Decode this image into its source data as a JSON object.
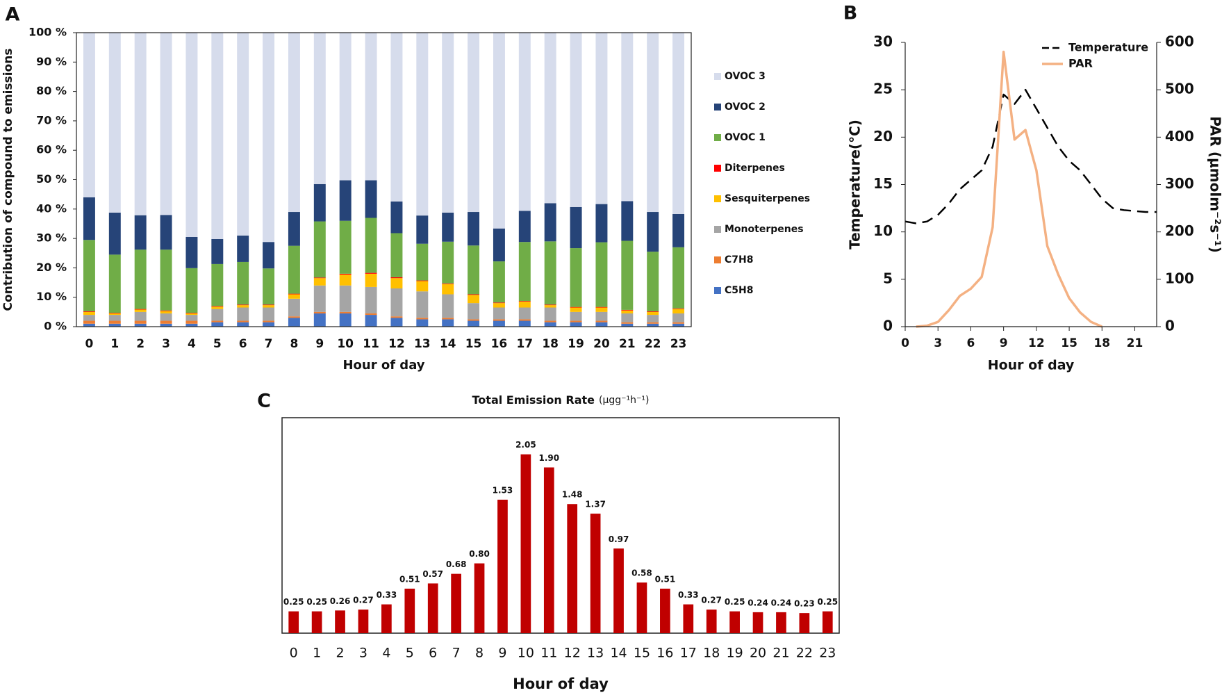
{
  "chart_data": [
    {
      "type": "stacked_bar",
      "panel_label": "A",
      "categories": [
        "0",
        "1",
        "2",
        "3",
        "4",
        "5",
        "6",
        "7",
        "8",
        "9",
        "10",
        "11",
        "12",
        "13",
        "14",
        "15",
        "16",
        "17",
        "18",
        "19",
        "20",
        "21",
        "22",
        "23"
      ],
      "xlabel": "Hour of day",
      "ylabel": "Contribution of compound to emissions",
      "ylim": [
        0,
        100
      ],
      "yticks": [
        {
          "value": 0,
          "label": "0 %"
        },
        {
          "value": 10,
          "label": "10 %"
        },
        {
          "value": 20,
          "label": "20 %"
        },
        {
          "value": 30,
          "label": "30 %"
        },
        {
          "value": 40,
          "label": "40 %"
        },
        {
          "value": 50,
          "label": "50 %"
        },
        {
          "value": 60,
          "label": "60 %"
        },
        {
          "value": 70,
          "label": "70 %"
        },
        {
          "value": 80,
          "label": "80 %"
        },
        {
          "value": 90,
          "label": "90 %"
        },
        {
          "value": 100,
          "label": "100 %"
        }
      ],
      "series": [
        {
          "name": "C5H8",
          "color": "#4472c4",
          "values": [
            1,
            1,
            1,
            1,
            1,
            1.5,
            1.5,
            1.5,
            3,
            4.5,
            4.5,
            4,
            3,
            2.5,
            2.5,
            2,
            2,
            2,
            1.5,
            1.5,
            1.5,
            1,
            1,
            1
          ]
        },
        {
          "name": "C7H8",
          "color": "#ed7d31",
          "values": [
            1,
            1,
            1,
            1,
            1,
            0.5,
            0.5,
            0.5,
            0.5,
            0.5,
            0.5,
            0.5,
            0.5,
            0.5,
            0.5,
            0.5,
            0.5,
            0.5,
            0.5,
            0.5,
            0.5,
            0.5,
            0.5,
            0.5
          ]
        },
        {
          "name": "Monoterpenes",
          "color": "#a5a5a5",
          "values": [
            2,
            2,
            3,
            2.5,
            2,
            4,
            4.5,
            4.5,
            6,
            9,
            9,
            9,
            9.5,
            9,
            8,
            5.5,
            4,
            4,
            4.5,
            3,
            3,
            3,
            2.5,
            3
          ]
        },
        {
          "name": "Sesquiterpenes",
          "color": "#ffc000",
          "values": [
            1,
            0.5,
            0.8,
            0.8,
            0.5,
            0.8,
            0.8,
            0.8,
            1.5,
            2.5,
            3.7,
            4.5,
            3.5,
            3.5,
            3.5,
            2.8,
            1.5,
            2,
            0.8,
            1.5,
            1.5,
            1,
            1,
            1.5
          ]
        },
        {
          "name": "Diterpenes",
          "color": "#ff0000",
          "values": [
            0.2,
            0.2,
            0.2,
            0.2,
            0.2,
            0.2,
            0.2,
            0.2,
            0.2,
            0.2,
            0.3,
            0.3,
            0.3,
            0.2,
            0.2,
            0.2,
            0.2,
            0.2,
            0.2,
            0.2,
            0.2,
            0.2,
            0.2,
            0.2
          ]
        },
        {
          "name": "OVOC 1",
          "color": "#70ad47",
          "values": [
            24.3,
            19.8,
            20.2,
            20.7,
            15.2,
            14.3,
            14.5,
            12.3,
            16.3,
            19.1,
            18,
            18.7,
            15,
            12.5,
            14.2,
            16.6,
            14,
            20.1,
            21.5,
            20,
            22,
            23.5,
            20.3,
            20.8
          ]
        },
        {
          "name": "OVOC 2",
          "color": "#264478",
          "values": [
            14.5,
            14.3,
            11.7,
            11.8,
            10.6,
            8.5,
            9,
            9,
            11.5,
            12.7,
            13.8,
            12.8,
            10.8,
            9.6,
            9.9,
            11.4,
            11.2,
            10.6,
            13,
            14,
            13,
            13.5,
            13.5,
            11.3
          ]
        },
        {
          "name": "OVOC 3",
          "color": "#d6dcec",
          "values": [
            56,
            61.2,
            62.1,
            62,
            69.5,
            70.2,
            69,
            71.2,
            61,
            51.5,
            50.2,
            50.2,
            57.4,
            62.2,
            61.2,
            61,
            66.6,
            60.6,
            58,
            59.3,
            58.3,
            57.3,
            61,
            61.7
          ]
        }
      ]
    },
    {
      "type": "line",
      "panel_label": "B",
      "x": [
        0,
        1,
        2,
        3,
        4,
        5,
        6,
        7,
        8,
        9,
        10,
        11,
        12,
        13,
        14,
        15,
        16,
        17,
        18,
        19,
        20,
        21,
        22,
        23
      ],
      "xlim": [
        0,
        23
      ],
      "xticks": [
        0,
        3,
        6,
        9,
        12,
        15,
        18,
        21
      ],
      "xlabel": "Hour of day",
      "ylabel": "Temperature(°C)",
      "y2label": "PAR (μmolm⁻²s⁻¹)",
      "ylim": [
        0,
        30
      ],
      "yticks": [
        0,
        5,
        10,
        15,
        20,
        25,
        30
      ],
      "y2lim": [
        0,
        600
      ],
      "y2ticks": [
        0,
        100,
        200,
        300,
        400,
        500,
        600
      ],
      "legend": "upper right",
      "series": [
        {
          "name": "Temperature",
          "color": "#000000",
          "dashed": true,
          "values": [
            11.1,
            10.9,
            11.1,
            11.8,
            13,
            14.5,
            15.5,
            16.5,
            19,
            24.5,
            23.5,
            25,
            23,
            21,
            19,
            17.5,
            16.5,
            15,
            13.5,
            12.5,
            12.3,
            12.2,
            12.1,
            12.1
          ]
        },
        {
          "name": "PAR",
          "color": "#f4b183",
          "axis": "y2",
          "values": [
            null,
            0,
            2,
            10,
            35,
            65,
            80,
            105,
            210,
            580,
            395,
            415,
            330,
            170,
            110,
            60,
            30,
            10,
            0,
            null,
            null,
            null,
            null,
            null
          ]
        }
      ]
    },
    {
      "type": "bar",
      "panel_label": "C",
      "title": "Total Emission Rate",
      "title_unit": "(μgg⁻¹h⁻¹)",
      "categories": [
        "0",
        "1",
        "2",
        "3",
        "4",
        "5",
        "6",
        "7",
        "8",
        "9",
        "10",
        "11",
        "12",
        "13",
        "14",
        "15",
        "16",
        "17",
        "18",
        "19",
        "20",
        "21",
        "22",
        "23"
      ],
      "values": [
        0.25,
        0.25,
        0.26,
        0.27,
        0.33,
        0.51,
        0.57,
        0.68,
        0.8,
        1.53,
        2.05,
        1.9,
        1.48,
        1.37,
        0.97,
        0.58,
        0.51,
        0.33,
        0.27,
        0.25,
        0.24,
        0.24,
        0.23,
        0.25
      ],
      "value_labels": [
        "0.25",
        "0.25",
        "0.26",
        "0.27",
        "0.33",
        "0.51",
        "0.57",
        "0.68",
        "0.80",
        "1.53",
        "2.05",
        "1.90",
        "1.48",
        "1.37",
        "0.97",
        "0.58",
        "0.51",
        "0.33",
        "0.27",
        "0.25",
        "0.24",
        "0.24",
        "0.23",
        "0.25"
      ],
      "color": "#c00000",
      "xlabel": "Hour of day"
    }
  ]
}
